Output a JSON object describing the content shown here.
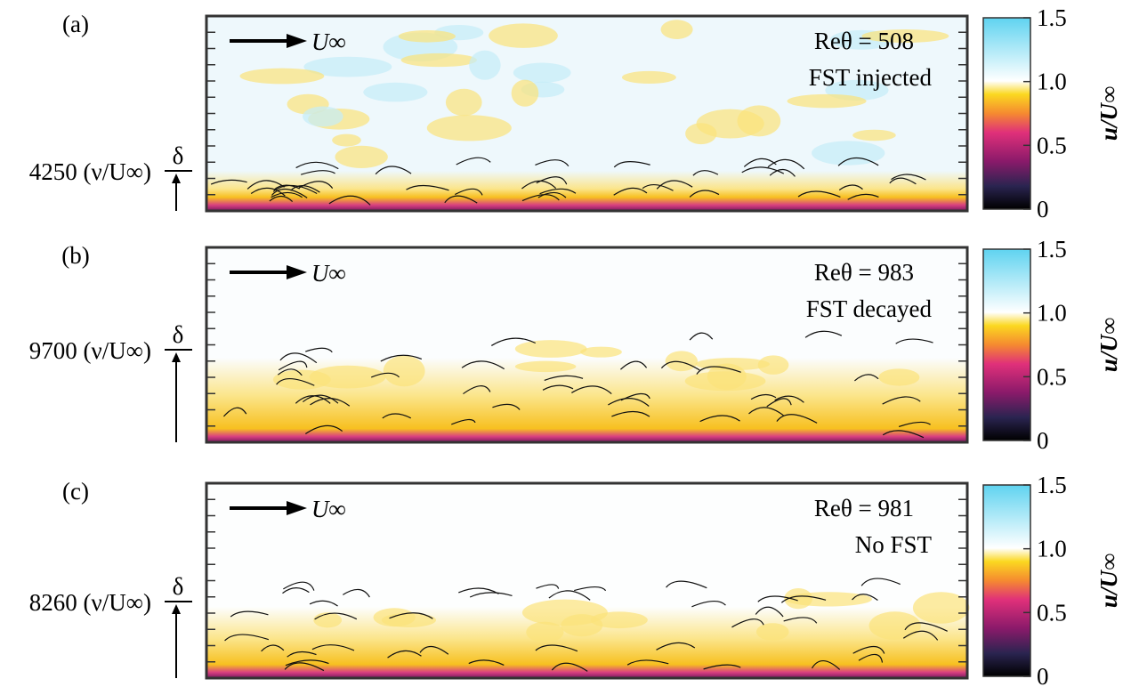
{
  "panels": [
    {
      "label": "(a)",
      "scale": "4250 (ν/U∞)",
      "delta": "δ",
      "freestream": "U∞",
      "reynolds": "Reθ = 508",
      "case": "FST injected",
      "colorbar_label": "u/U∞",
      "clim": [
        0,
        1.5
      ],
      "cticks": [
        0,
        0.5,
        {
          "value": 1,
          "label": "1.0"
        },
        1.5
      ]
    },
    {
      "label": "(b)",
      "scale": "9700 (ν/U∞)",
      "delta": "δ",
      "freestream": "U∞",
      "reynolds": "Reθ = 983",
      "case": "FST decayed",
      "colorbar_label": "u/U∞",
      "clim": [
        0,
        1.5
      ],
      "cticks": [
        0,
        0.5,
        {
          "value": 1,
          "label": "1.0"
        },
        1.5
      ]
    },
    {
      "label": "(c)",
      "scale": "8260 (ν/U∞)",
      "delta": "δ",
      "freestream": "U∞",
      "reynolds": "Reθ = 981",
      "case": "No FST",
      "colorbar_label": "u/U∞",
      "clim": [
        0,
        1.5
      ],
      "cticks": [
        0,
        0.5,
        {
          "value": 1,
          "label": "1.0"
        },
        1.5
      ]
    }
  ]
}
